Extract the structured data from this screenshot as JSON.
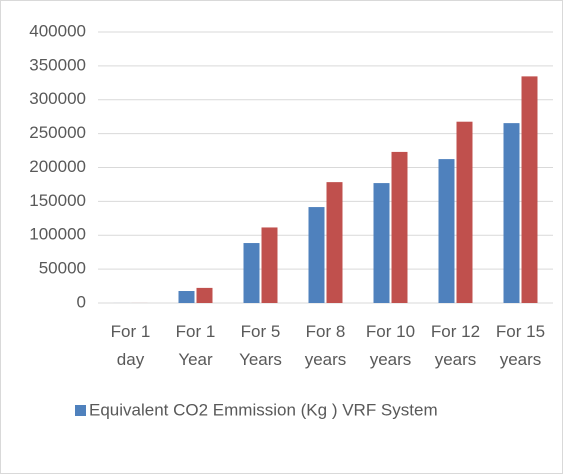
{
  "chart_data": {
    "type": "bar",
    "categories": [
      "For 1 day",
      "For 1 Year",
      "For 5 Years",
      "For 8 years",
      "For 10 years",
      "For 12 years",
      "For 15 years"
    ],
    "series": [
      {
        "name": "Equivalent CO2 Emmission (Kg ) VRF System",
        "color": "#4f81bd",
        "values": [
          48.5,
          17700,
          88500,
          141600,
          177000,
          212400,
          265500
        ]
      },
      {
        "color": "#c0504d",
        "values": [
          61,
          22300,
          111500,
          178400,
          223000,
          267600,
          334500
        ]
      }
    ],
    "ylim": [
      0,
      400000
    ],
    "yticks": [
      0,
      50000,
      100000,
      150000,
      200000,
      250000,
      300000,
      350000,
      400000
    ],
    "grid": true,
    "legend": "bottom"
  }
}
